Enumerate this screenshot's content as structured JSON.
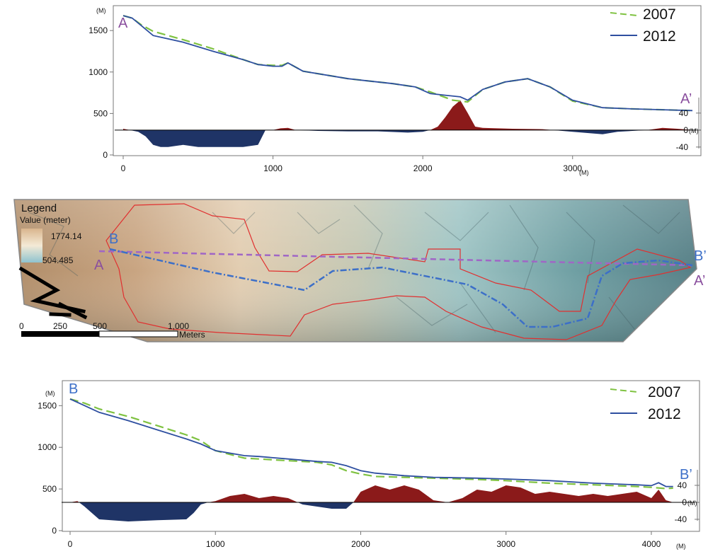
{
  "chart_data": [
    {
      "type": "line",
      "id": "profile-a",
      "x_unit": "(M)",
      "y_unit": "(M)",
      "xlim": [
        0,
        3800
      ],
      "ylim": [
        0,
        1800
      ],
      "x_ticks": [
        0,
        1000,
        2000,
        3000
      ],
      "y_ticks": [
        0,
        500,
        1000,
        1500
      ],
      "start_label": "A",
      "end_label": "A’",
      "legend": [
        "2007",
        "2012"
      ],
      "series": [
        {
          "name": "2007",
          "style": "dashed",
          "color": "#7fc241",
          "x": [
            0,
            60,
            120,
            200,
            400,
            600,
            800,
            900,
            1000,
            1060,
            1100,
            1200,
            1500,
            1800,
            1950,
            2050,
            2200,
            2300,
            2400,
            2550,
            2700,
            2850,
            3000,
            3200,
            3400,
            3600,
            3800
          ],
          "y": [
            1680,
            1650,
            1570,
            1490,
            1390,
            1280,
            1150,
            1090,
            1080,
            1080,
            1110,
            1010,
            920,
            860,
            820,
            760,
            660,
            640,
            790,
            880,
            920,
            820,
            650,
            570,
            555,
            545,
            535
          ]
        },
        {
          "name": "2012",
          "style": "solid",
          "color": "#2e4fa0",
          "x": [
            0,
            60,
            120,
            200,
            400,
            600,
            800,
            900,
            1000,
            1060,
            1100,
            1200,
            1500,
            1800,
            1950,
            2050,
            2150,
            2250,
            2300,
            2400,
            2550,
            2700,
            2850,
            3000,
            3200,
            3400,
            3600,
            3800
          ],
          "y": [
            1680,
            1650,
            1560,
            1440,
            1360,
            1250,
            1150,
            1090,
            1070,
            1070,
            1110,
            1010,
            920,
            860,
            820,
            740,
            720,
            700,
            660,
            790,
            880,
            920,
            820,
            660,
            570,
            555,
            545,
            535
          ]
        }
      ],
      "diff": {
        "zero_at": 300,
        "ticks": [
          40,
          0,
          -40
        ],
        "unit": "(M)",
        "x": [
          0,
          100,
          150,
          200,
          250,
          300,
          400,
          500,
          600,
          700,
          800,
          900,
          950,
          1000,
          1050,
          1100,
          1150,
          1300,
          1500,
          1700,
          1900,
          2000,
          2050,
          2100,
          2150,
          2200,
          2250,
          2300,
          2350,
          2400,
          2600,
          2800,
          3000,
          3200,
          3300,
          3500,
          3600,
          3700,
          3800
        ],
        "y": [
          3,
          -4,
          -15,
          -35,
          -40,
          -40,
          -35,
          -40,
          -40,
          -40,
          -40,
          -35,
          0,
          0,
          4,
          5,
          0,
          -2,
          -3,
          -3,
          -6,
          -4,
          0,
          8,
          30,
          55,
          70,
          40,
          8,
          5,
          3,
          2,
          -4,
          -10,
          -4,
          0,
          5,
          3,
          0
        ]
      }
    },
    {
      "type": "line",
      "id": "profile-b",
      "x_unit": "(M)",
      "y_unit": "(M)",
      "xlim": [
        0,
        4200
      ],
      "ylim": [
        0,
        1800
      ],
      "x_ticks": [
        0,
        1000,
        2000,
        3000,
        4000
      ],
      "y_ticks": [
        0,
        500,
        1000,
        1500
      ],
      "start_label": "B",
      "end_label": "B’",
      "legend": [
        "2007",
        "2012"
      ],
      "series": [
        {
          "name": "2007",
          "style": "dashed",
          "color": "#7fc241",
          "x": [
            0,
            100,
            200,
            400,
            600,
            800,
            900,
            1000,
            1200,
            1300,
            1500,
            1700,
            1800,
            1900,
            2000,
            2100,
            2300,
            2500,
            2800,
            3000,
            3300,
            3600,
            3900,
            4000,
            4100,
            4150
          ],
          "y": [
            1580,
            1530,
            1460,
            1370,
            1260,
            1150,
            1080,
            960,
            870,
            860,
            840,
            820,
            790,
            720,
            680,
            650,
            640,
            630,
            615,
            600,
            570,
            550,
            530,
            520,
            505,
            510
          ]
        },
        {
          "name": "2012",
          "style": "solid",
          "color": "#2e4fa0",
          "x": [
            0,
            100,
            200,
            400,
            600,
            800,
            900,
            1000,
            1200,
            1300,
            1500,
            1700,
            1800,
            1900,
            2000,
            2100,
            2300,
            2500,
            2800,
            3000,
            3300,
            3600,
            3900,
            4000,
            4050,
            4100,
            4150
          ],
          "y": [
            1580,
            1500,
            1420,
            1320,
            1210,
            1100,
            1040,
            960,
            900,
            890,
            860,
            830,
            820,
            780,
            720,
            690,
            660,
            640,
            630,
            620,
            600,
            570,
            550,
            540,
            575,
            530,
            530
          ]
        }
      ],
      "diff": {
        "zero_at": 340,
        "ticks": [
          40,
          0,
          -40
        ],
        "unit": "(M)",
        "x": [
          0,
          50,
          100,
          200,
          400,
          600,
          800,
          850,
          900,
          950,
          1000,
          1100,
          1200,
          1300,
          1400,
          1500,
          1600,
          1700,
          1800,
          1900,
          1950,
          2000,
          2100,
          2200,
          2300,
          2400,
          2500,
          2600,
          2700,
          2800,
          2900,
          3000,
          3100,
          3200,
          3300,
          3400,
          3500,
          3600,
          3700,
          3800,
          3900,
          4000,
          4050,
          4100,
          4150
        ],
        "y": [
          0,
          3,
          -10,
          -40,
          -45,
          -42,
          -40,
          -25,
          -5,
          0,
          3,
          15,
          20,
          10,
          15,
          10,
          -5,
          -10,
          -15,
          -15,
          0,
          25,
          40,
          30,
          40,
          30,
          5,
          0,
          10,
          30,
          25,
          40,
          35,
          20,
          25,
          20,
          15,
          20,
          15,
          20,
          25,
          10,
          30,
          5,
          0
        ]
      }
    }
  ],
  "map": {
    "legend_title": "Legend",
    "value_title": "Value (meter)",
    "value_max": "1774.14",
    "value_min": "504.485",
    "label_a": "A",
    "label_a_end": "A’",
    "label_b": "B",
    "label_b_end": "B’",
    "scale_ticks": [
      "0",
      "250",
      "500",
      "1,000"
    ],
    "scale_unit": "Meters"
  }
}
